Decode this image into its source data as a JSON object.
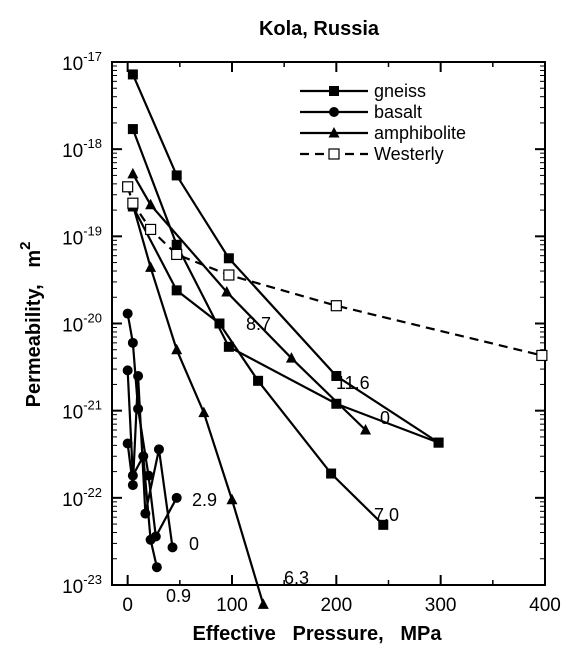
{
  "chart_data": {
    "type": "line",
    "title": "Kola,   Russia",
    "xlabel": "Effective   Pressure,   MPa",
    "ylabel": "Permeability,   m",
    "ylabel_superscript": "2",
    "x_scale": "linear",
    "y_scale": "log",
    "xlim": [
      -15,
      400
    ],
    "ylim": [
      1e-23,
      1e-17
    ],
    "x_ticks": [
      "0",
      "100",
      "200",
      "300",
      "400"
    ],
    "y_ticks": [
      {
        "base": "10",
        "exp": "-17"
      },
      {
        "base": "10",
        "exp": "-18"
      },
      {
        "base": "10",
        "exp": "-19"
      },
      {
        "base": "10",
        "exp": "-20"
      },
      {
        "base": "10",
        "exp": "-21"
      },
      {
        "base": "10",
        "exp": "-22"
      },
      {
        "base": "10",
        "exp": "-23"
      }
    ],
    "legend": {
      "position": "top-right",
      "entries": [
        {
          "label": "gneiss",
          "marker": "square",
          "line": "solid"
        },
        {
          "label": "basalt",
          "marker": "circle",
          "line": "solid"
        },
        {
          "label": "amphibolite",
          "marker": "triangle",
          "line": "solid"
        },
        {
          "label": "Westerly",
          "marker": "open-square",
          "line": "dashed"
        }
      ]
    },
    "series": [
      {
        "rock": "gneiss",
        "marker": "square",
        "line": "solid",
        "label": "11.6",
        "points": [
          [
            5,
            7.2e-18
          ],
          [
            47,
            5e-19
          ],
          [
            97,
            5.6e-20
          ],
          [
            200,
            2.5e-21
          ],
          [
            298,
            4.3e-22
          ]
        ]
      },
      {
        "rock": "gneiss",
        "marker": "square",
        "line": "solid",
        "label": "7.0",
        "points": [
          [
            5,
            1.7e-18
          ],
          [
            47,
            8e-20
          ],
          [
            97,
            5.4e-21
          ],
          [
            200,
            1.2e-21
          ],
          [
            298,
            4.3e-22
          ]
        ]
      },
      {
        "rock": "gneiss",
        "marker": "square",
        "line": "solid",
        "label": "",
        "points": [
          [
            5,
            2.2e-19
          ],
          [
            47,
            2.4e-20
          ],
          [
            88,
            1e-20
          ],
          [
            125,
            2.2e-21
          ],
          [
            195,
            1.9e-22
          ],
          [
            245,
            4.9e-23
          ]
        ]
      },
      {
        "rock": "amphibolite",
        "marker": "triangle",
        "line": "solid",
        "label": "8.7",
        "points": [
          [
            5,
            5.2e-19
          ],
          [
            22,
            2.3e-19
          ],
          [
            95,
            2.3e-20
          ],
          [
            157,
            4e-21
          ],
          [
            228,
            6e-22
          ]
        ]
      },
      {
        "rock": "amphibolite",
        "marker": "triangle",
        "line": "solid",
        "label": "6.3",
        "points": [
          [
            5,
            2.3e-19
          ],
          [
            22,
            4.4e-20
          ],
          [
            47,
            5e-21
          ],
          [
            73,
            9.5e-22
          ],
          [
            100,
            9.5e-23
          ],
          [
            130,
            6e-24
          ]
        ]
      },
      {
        "rock": "basalt",
        "marker": "circle",
        "line": "solid",
        "label": "2.9",
        "points": [
          [
            0,
            1.3e-20
          ],
          [
            5,
            6e-21
          ],
          [
            10,
            1.05e-21
          ],
          [
            20,
            1.8e-22
          ],
          [
            27,
            3.6e-23
          ],
          [
            47,
            1e-22
          ]
        ]
      },
      {
        "rock": "basalt",
        "marker": "circle",
        "line": "solid",
        "label": "0",
        "points": [
          [
            0,
            4.2e-22
          ],
          [
            5,
            1.4e-22
          ],
          [
            10,
            2.5e-21
          ],
          [
            17,
            6.6e-23
          ],
          [
            30,
            3.6e-22
          ],
          [
            43,
            2.7e-23
          ]
        ]
      },
      {
        "rock": "basalt",
        "marker": "circle",
        "line": "solid",
        "label": "0.9",
        "points": [
          [
            0,
            2.9e-21
          ],
          [
            5,
            1.8e-22
          ],
          [
            15,
            3e-22
          ],
          [
            22,
            3.3e-23
          ],
          [
            28,
            1.6e-23
          ]
        ]
      },
      {
        "rock": "Westerly",
        "marker": "open-square",
        "line": "dashed",
        "label": "0",
        "points": [
          [
            0,
            3.7e-19
          ],
          [
            5,
            2.4e-19
          ],
          [
            22,
            1.2e-19
          ],
          [
            47,
            6.2e-20
          ],
          [
            97,
            3.6e-20
          ],
          [
            200,
            1.6e-20
          ],
          [
            397,
            4.3e-21
          ]
        ]
      }
    ],
    "annotations": [
      "11.6",
      "8.7",
      "0",
      "7.0",
      "2.9",
      "0",
      "6.3",
      "0.9"
    ]
  }
}
